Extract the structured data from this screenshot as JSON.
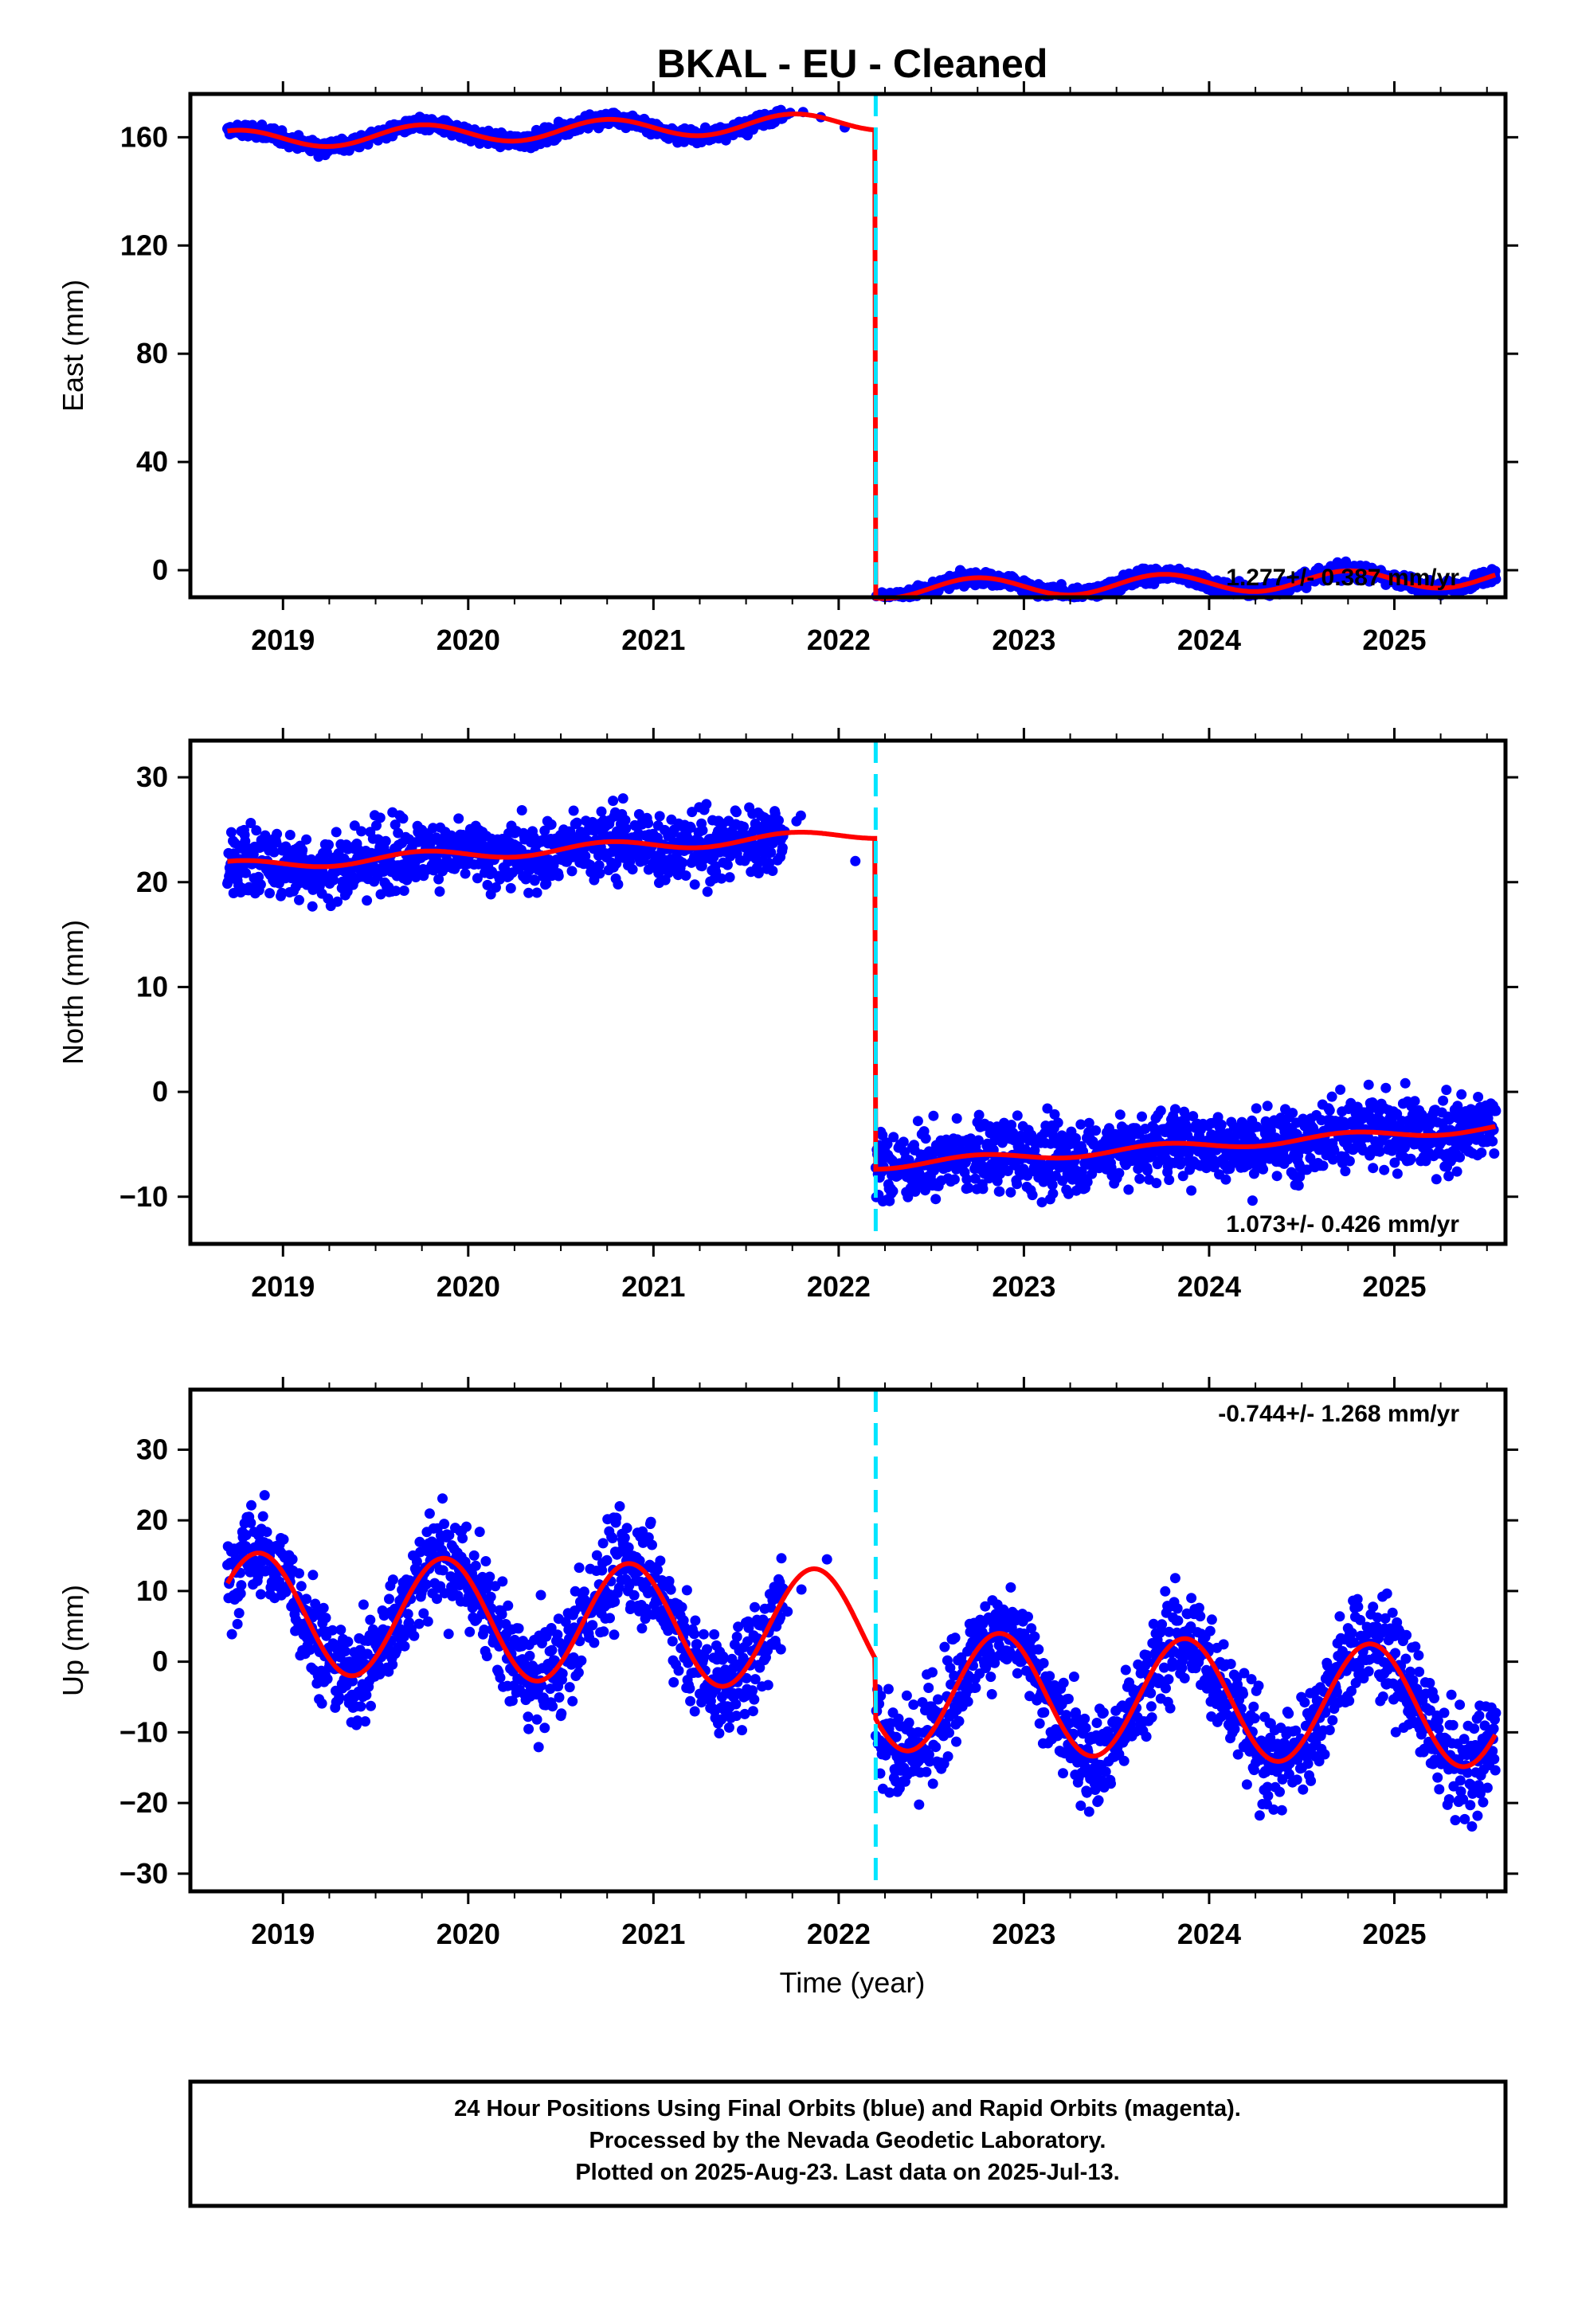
{
  "chart_data": {
    "type": "scatter",
    "title": "BKAL  - EU - Cleaned",
    "xlabel": "Time (year)",
    "xlim": [
      2018.5,
      2025.6
    ],
    "x_ticks": [
      2019,
      2020,
      2021,
      2022,
      2023,
      2024,
      2025
    ],
    "offset_epoch": 2022.2,
    "panels": [
      {
        "name": "east",
        "ylabel": "East (mm)",
        "ylim": [
          -10,
          176
        ],
        "y_ticks": [
          0,
          40,
          80,
          120,
          160
        ],
        "rate_label": "1.277+/- 0.387 mm/yr",
        "rate_position": "bottom-right",
        "model": {
          "before": {
            "level": 159,
            "trend": 2.0,
            "amplitude": 3.5,
            "phase": 0.5
          },
          "after": {
            "level": -7,
            "trend": 1.277,
            "amplitude": 3.5,
            "phase": 0.5
          }
        },
        "scatter": 1.8
      },
      {
        "name": "north",
        "ylabel": "North (mm)",
        "ylim": [
          -14.5,
          33.5
        ],
        "y_ticks": [
          -10,
          0,
          10,
          20,
          30
        ],
        "rate_label": "1.073+/- 0.426 mm/yr",
        "rate_position": "bottom-right",
        "model": {
          "before": {
            "level": 21.5,
            "trend": 0.9,
            "amplitude": 0.5,
            "phase": 0.5
          },
          "after": {
            "level": -7,
            "trend": 1.073,
            "amplitude": 0.4,
            "phase": 0.5
          }
        },
        "scatter": 2.3
      },
      {
        "name": "up",
        "ylabel": "Up (mm)",
        "ylim": [
          -32.5,
          38.5
        ],
        "y_ticks": [
          -30,
          -20,
          -10,
          0,
          10,
          20,
          30
        ],
        "rate_label": "-0.744+/- 1.268 mm/yr",
        "rate_position": "top-right",
        "model": {
          "before": {
            "level": 7,
            "trend": -0.744,
            "amplitude": 8.5,
            "phase": 0.62
          },
          "after": {
            "level": -4,
            "trend": -0.744,
            "amplitude": 8.5,
            "phase": 0.62
          }
        },
        "scatter": 5.0
      }
    ],
    "series": [
      {
        "name": "Final Orbits",
        "color": "#0000ff",
        "kind": "points"
      },
      {
        "name": "model fit",
        "color": "#ff0000",
        "kind": "line"
      },
      {
        "name": "offset",
        "color": "#00e5ff",
        "kind": "dashed-vertical-line"
      }
    ],
    "data_segments": [
      {
        "start": 2018.7,
        "end": 2021.7,
        "density": 1.0
      },
      {
        "start": 2021.7,
        "end": 2022.1,
        "density": 0.03
      },
      {
        "start": 2022.2,
        "end": 2025.55,
        "density": 1.0
      }
    ]
  },
  "footer": {
    "line1": "24 Hour Positions Using Final Orbits (blue) and Rapid Orbits (magenta).",
    "line2": "Processed by the Nevada Geodetic Laboratory.",
    "line3": "Plotted on 2025-Aug-23. Last data on 2025-Jul-13."
  },
  "colors": {
    "points": "#0000ff",
    "fit": "#ff0000",
    "offset": "#00e5ff",
    "frame": "#000000"
  }
}
